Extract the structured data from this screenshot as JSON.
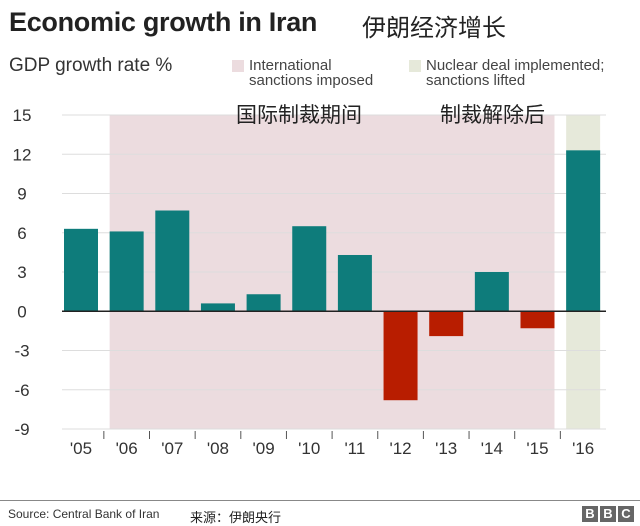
{
  "header": {
    "title": "Economic growth in Iran",
    "title_zh": "伊朗经济增长",
    "ylabel": "GDP growth rate %"
  },
  "legend": [
    {
      "line1": "International",
      "line2": "sanctions imposed",
      "color": "#ecdcdf",
      "annotation_zh": "国际制裁期间"
    },
    {
      "line1": "Nuclear deal implemented;",
      "line2": "sanctions lifted",
      "color": "#e6e9da",
      "annotation_zh": "制裁解除后"
    }
  ],
  "footer": {
    "source": "Source: Central Bank of Iran",
    "source_zh": "来源：伊朗央行",
    "logo": [
      "B",
      "B",
      "C"
    ]
  },
  "chart_data": {
    "type": "bar",
    "categories": [
      "'05",
      "'06",
      "'07",
      "'08",
      "'09",
      "'10",
      "'11",
      "'12",
      "'13",
      "'14",
      "'15",
      "'16"
    ],
    "values": [
      6.3,
      6.1,
      7.7,
      0.6,
      1.3,
      6.5,
      4.3,
      -6.8,
      -1.9,
      3.0,
      -1.3,
      12.3
    ],
    "ylabel": "GDP growth rate %",
    "ylim": [
      -9,
      15
    ],
    "yticks": [
      15,
      12,
      9,
      6,
      3,
      0,
      -3,
      -6,
      -9
    ],
    "grid": true,
    "colors": {
      "positive": "#0e7c7b",
      "negative": "#b81d00"
    },
    "shaded_periods": [
      {
        "label": "International sanctions imposed",
        "from": "'06",
        "to": "'15",
        "color": "#ecdcdf"
      },
      {
        "label": "Nuclear deal implemented; sanctions lifted",
        "from": "'16",
        "to": "'16",
        "color": "#e6e9da"
      }
    ]
  }
}
